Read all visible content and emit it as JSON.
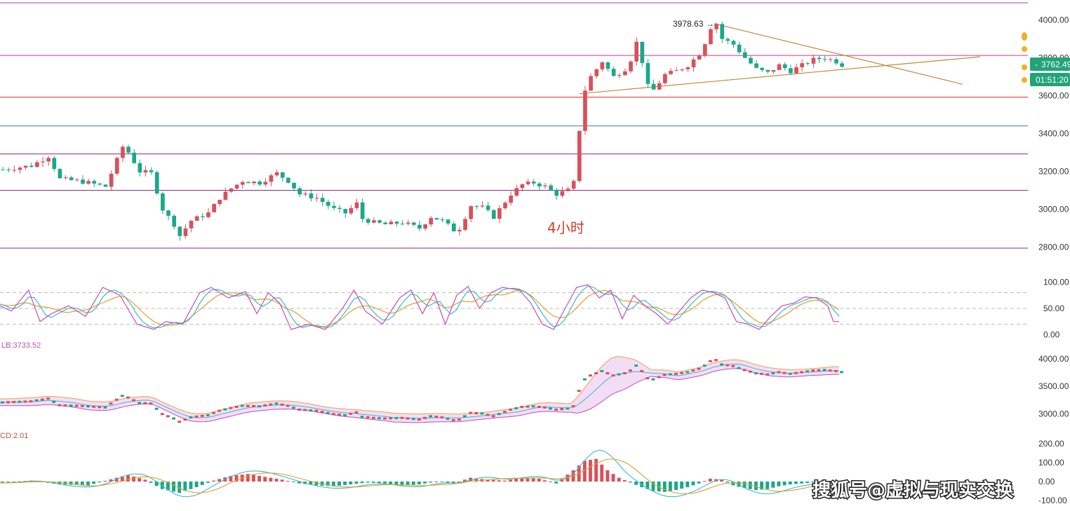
{
  "chart_data": {
    "type": "candlestick",
    "timeframe_label": "4小时",
    "price_axis": {
      "ticks": [
        "4000.00",
        "3800.00",
        "3600.00",
        "3400.00",
        "3200.00",
        "3000.00",
        "2800.00"
      ],
      "tick_values": [
        4000,
        3800,
        3600,
        3400,
        3200,
        3000,
        2800
      ],
      "range": [
        2780,
        4090
      ]
    },
    "current_price": "3762.49",
    "countdown": "01:51:20",
    "high_annotation": "3978.63",
    "horizontal_levels": [
      {
        "value": 4090,
        "color": "#b03cb0"
      },
      {
        "value": 3812,
        "color": "#d4388a"
      },
      {
        "value": 3592,
        "color": "#d62828"
      },
      {
        "value": 3440,
        "color": "#2f7fa8"
      },
      {
        "value": 3292,
        "color": "#8a2b8a"
      },
      {
        "value": 3100,
        "color": "#8a2b8a"
      },
      {
        "value": 2795,
        "color": "#8a2b8a"
      }
    ],
    "trendlines": [
      {
        "from": [
          0.0,
          3610
        ],
        "to": [
          1.0,
          3805
        ],
        "color": "#c08a3a"
      },
      {
        "from": [
          0.0,
          3980
        ],
        "to": [
          1.0,
          3660
        ],
        "color": "#c08a3a"
      }
    ],
    "price_path": [
      [
        0,
        3210
      ],
      [
        5,
        3230
      ],
      [
        8,
        3280
      ],
      [
        10,
        3160
      ],
      [
        13,
        3150
      ],
      [
        15,
        3140
      ],
      [
        18,
        3120
      ],
      [
        20,
        3260
      ],
      [
        21,
        3330
      ],
      [
        22,
        3300
      ],
      [
        24,
        3200
      ],
      [
        26,
        3190
      ],
      [
        28,
        3000
      ],
      [
        30,
        2920
      ],
      [
        31,
        2860
      ],
      [
        33,
        2940
      ],
      [
        36,
        2980
      ],
      [
        38,
        3060
      ],
      [
        40,
        3110
      ],
      [
        42,
        3150
      ],
      [
        45,
        3140
      ],
      [
        48,
        3190
      ],
      [
        50,
        3150
      ],
      [
        52,
        3080
      ],
      [
        55,
        3060
      ],
      [
        58,
        3000
      ],
      [
        60,
        2980
      ],
      [
        62,
        3030
      ],
      [
        63,
        2950
      ],
      [
        65,
        2930
      ],
      [
        67,
        2920
      ],
      [
        70,
        2930
      ],
      [
        73,
        2900
      ],
      [
        75,
        2960
      ],
      [
        77,
        2940
      ],
      [
        79,
        2890
      ],
      [
        80,
        2900
      ],
      [
        82,
        3020
      ],
      [
        84,
        3010
      ],
      [
        86,
        2960
      ],
      [
        87,
        3000
      ],
      [
        89,
        3080
      ],
      [
        91,
        3130
      ],
      [
        93,
        3140
      ],
      [
        95,
        3120
      ],
      [
        97,
        3080
      ],
      [
        99,
        3100
      ],
      [
        100,
        3140
      ],
      [
        101,
        3420
      ],
      [
        102,
        3630
      ],
      [
        103,
        3700
      ],
      [
        105,
        3780
      ],
      [
        107,
        3700
      ],
      [
        109,
        3740
      ],
      [
        110,
        3790
      ],
      [
        111,
        3880
      ],
      [
        112,
        3780
      ],
      [
        113,
        3650
      ],
      [
        114,
        3630
      ],
      [
        116,
        3710
      ],
      [
        118,
        3730
      ],
      [
        120,
        3760
      ],
      [
        122,
        3820
      ],
      [
        123,
        3880
      ],
      [
        124,
        3960
      ],
      [
        125,
        3980
      ],
      [
        126,
        3900
      ],
      [
        128,
        3870
      ],
      [
        130,
        3800
      ],
      [
        132,
        3740
      ],
      [
        134,
        3720
      ],
      [
        136,
        3760
      ],
      [
        138,
        3730
      ],
      [
        140,
        3760
      ],
      [
        142,
        3790
      ],
      [
        144,
        3800
      ],
      [
        146,
        3780
      ],
      [
        147,
        3762
      ]
    ],
    "stoch": {
      "ticks": [
        "100.00",
        "50.00",
        "0.00"
      ],
      "tick_values": [
        100,
        50,
        0
      ],
      "range": [
        -10,
        110
      ],
      "levels": [
        80,
        50,
        20
      ],
      "k_series": [
        [
          0,
          60
        ],
        [
          3,
          45
        ],
        [
          6,
          85
        ],
        [
          8,
          25
        ],
        [
          10,
          40
        ],
        [
          13,
          55
        ],
        [
          16,
          35
        ],
        [
          19,
          90
        ],
        [
          22,
          75
        ],
        [
          25,
          20
        ],
        [
          28,
          10
        ],
        [
          30,
          25
        ],
        [
          33,
          20
        ],
        [
          36,
          80
        ],
        [
          38,
          90
        ],
        [
          41,
          70
        ],
        [
          44,
          82
        ],
        [
          46,
          40
        ],
        [
          48,
          80
        ],
        [
          50,
          60
        ],
        [
          52,
          10
        ],
        [
          55,
          20
        ],
        [
          58,
          10
        ],
        [
          61,
          50
        ],
        [
          63,
          85
        ],
        [
          65,
          45
        ],
        [
          68,
          20
        ],
        [
          71,
          70
        ],
        [
          73,
          85
        ],
        [
          75,
          40
        ],
        [
          77,
          80
        ],
        [
          79,
          20
        ],
        [
          81,
          75
        ],
        [
          83,
          92
        ],
        [
          85,
          50
        ],
        [
          87,
          80
        ],
        [
          89,
          90
        ],
        [
          92,
          85
        ],
        [
          94,
          60
        ],
        [
          96,
          20
        ],
        [
          98,
          10
        ],
        [
          100,
          50
        ],
        [
          102,
          90
        ],
        [
          104,
          95
        ],
        [
          106,
          70
        ],
        [
          108,
          85
        ],
        [
          110,
          30
        ],
        [
          112,
          75
        ],
        [
          114,
          55
        ],
        [
          116,
          40
        ],
        [
          118,
          20
        ],
        [
          120,
          45
        ],
        [
          122,
          70
        ],
        [
          124,
          85
        ],
        [
          126,
          80
        ],
        [
          128,
          70
        ],
        [
          130,
          25
        ],
        [
          132,
          20
        ],
        [
          134,
          10
        ],
        [
          136,
          35
        ],
        [
          138,
          55
        ],
        [
          140,
          60
        ],
        [
          142,
          72
        ],
        [
          144,
          70
        ],
        [
          146,
          55
        ],
        [
          147,
          25
        ]
      ]
    },
    "bollinger": {
      "label": "LB:3733.52",
      "ticks": [
        "4000.00",
        "3500.00",
        "3000.00"
      ],
      "tick_values": [
        4000,
        3500,
        3000
      ],
      "range": [
        2750,
        4150
      ]
    },
    "macd": {
      "label": "CD:2.01",
      "ticks": [
        "200.00",
        "100.00",
        "0.00",
        "-100.00"
      ],
      "tick_values": [
        200,
        100,
        0,
        -100
      ],
      "range": [
        -130,
        230
      ],
      "hist": [
        [
          0,
          -5
        ],
        [
          5,
          5
        ],
        [
          10,
          -15
        ],
        [
          15,
          -20
        ],
        [
          20,
          20
        ],
        [
          22,
          35
        ],
        [
          25,
          10
        ],
        [
          28,
          -40
        ],
        [
          31,
          -60
        ],
        [
          34,
          -30
        ],
        [
          37,
          5
        ],
        [
          40,
          30
        ],
        [
          43,
          40
        ],
        [
          46,
          25
        ],
        [
          49,
          10
        ],
        [
          52,
          -10
        ],
        [
          55,
          -20
        ],
        [
          58,
          -25
        ],
        [
          61,
          -15
        ],
        [
          64,
          -5
        ],
        [
          67,
          -10
        ],
        [
          70,
          -20
        ],
        [
          73,
          -15
        ],
        [
          76,
          0
        ],
        [
          79,
          -10
        ],
        [
          82,
          20
        ],
        [
          85,
          10
        ],
        [
          88,
          5
        ],
        [
          91,
          20
        ],
        [
          94,
          15
        ],
        [
          97,
          -10
        ],
        [
          100,
          60
        ],
        [
          102,
          110
        ],
        [
          104,
          120
        ],
        [
          106,
          60
        ],
        [
          108,
          20
        ],
        [
          110,
          -5
        ],
        [
          112,
          -30
        ],
        [
          114,
          -50
        ],
        [
          116,
          -55
        ],
        [
          118,
          -45
        ],
        [
          120,
          -30
        ],
        [
          122,
          -10
        ],
        [
          124,
          15
        ],
        [
          126,
          10
        ],
        [
          128,
          -20
        ],
        [
          130,
          -35
        ],
        [
          132,
          -45
        ],
        [
          134,
          -40
        ],
        [
          136,
          -25
        ],
        [
          138,
          -15
        ],
        [
          140,
          -10
        ],
        [
          142,
          -5
        ],
        [
          144,
          -8
        ],
        [
          146,
          -4
        ],
        [
          147,
          2
        ]
      ]
    },
    "watermark": "搜狐号@虚拟与现实交换",
    "colors": {
      "up": "#d9505b",
      "down": "#1aa88a",
      "badge": "#22a37a",
      "k_line": "#c050b8",
      "d_line": "#e0a030",
      "j_line": "#40b8c8",
      "bb_fill": "#f3ddf5",
      "bb_upper": "#f0a050",
      "bb_lower": "#c050b8",
      "bb_mid": "#40b8c8",
      "macd_line": "#40b8c8",
      "signal_line": "#e0a030"
    }
  }
}
